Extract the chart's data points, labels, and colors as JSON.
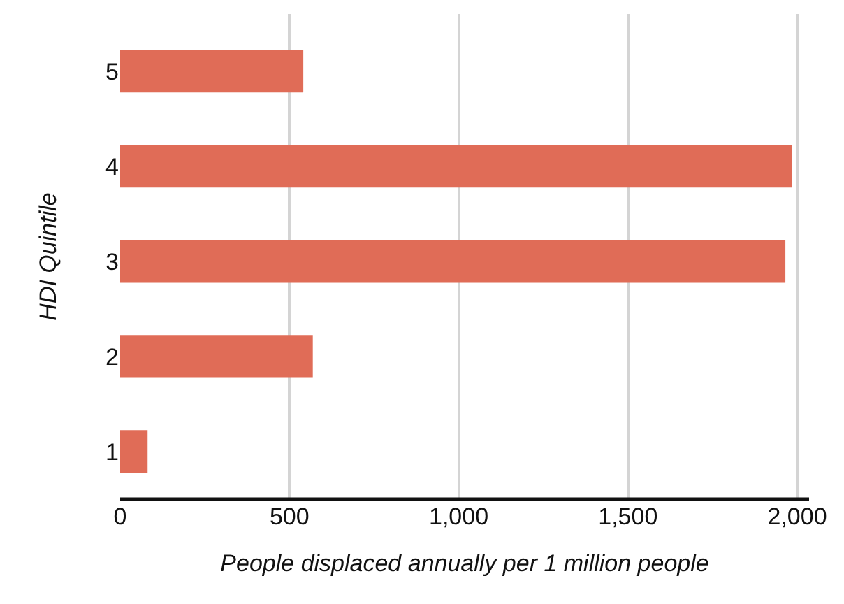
{
  "chart_data": {
    "type": "bar",
    "orientation": "horizontal",
    "categories": [
      "5",
      "4",
      "3",
      "2",
      "1"
    ],
    "values": [
      541,
      1985,
      1965,
      569,
      81
    ],
    "color": "#e06c57",
    "xlim": [
      0,
      2035
    ],
    "xticks": [
      0,
      500,
      {
        "value": 1000,
        "label": "1,000"
      },
      {
        "value": 1500,
        "label": "1,500"
      },
      {
        "value": 2000,
        "label": "2,000"
      }
    ],
    "xlabel": "People displaced annually per 1 million people",
    "ylabel": "HDI Quintile",
    "grid": "x",
    "legend": false
  }
}
